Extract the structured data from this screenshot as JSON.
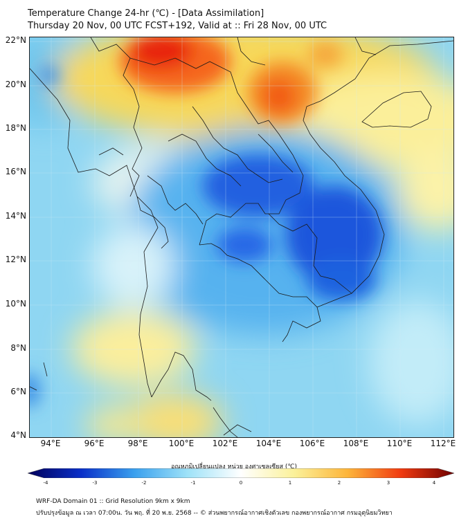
{
  "title": {
    "line1": "Temperature Change 24-hr (℃) - [Data Assimilation]",
    "line2": "Thursday 20 Nov, 00 UTC FCST+192, Valid at :: Fri 28 Nov, 00 UTC"
  },
  "map": {
    "lat_ticks": [
      "22°N",
      "20°N",
      "18°N",
      "16°N",
      "14°N",
      "12°N",
      "10°N",
      "8°N",
      "6°N",
      "4°N"
    ],
    "lon_ticks": [
      "94°E",
      "96°E",
      "98°E",
      "100°E",
      "102°E",
      "104°E",
      "106°E",
      "108°E",
      "110°E",
      "112°E"
    ],
    "lat_range": [
      4,
      22
    ],
    "lon_range": [
      93,
      112.4
    ]
  },
  "colorbar": {
    "label": "อุณหภูมิเปลี่ยนแปลง หน่วย องศาเซลเซียส (℃)",
    "ticks": [
      "-4",
      "-3",
      "-2",
      "-1",
      "0",
      "1",
      "2",
      "3",
      "4"
    ],
    "range": [
      -4,
      4
    ],
    "colors": [
      "#00005a",
      "#0a2fc8",
      "#3aa0ee",
      "#9ee2f8",
      "#ffffff",
      "#fbf19a",
      "#fdb53a",
      "#f03a10",
      "#6e0000"
    ]
  },
  "footer": {
    "line1": "WRF-DA Domain 01 :: Grid Resolution 9km x 9km",
    "line2": "ปรับปรุงข้อมูล ณ เวลา 07:00น. วัน พฤ. ที่ 20 พ.ย. 2568 -- © ส่วนพยากรณ์อากาศเชิงตัวเลข กองพยากรณ์อากาศ กรมอุตุนิยมวิทยา"
  }
}
